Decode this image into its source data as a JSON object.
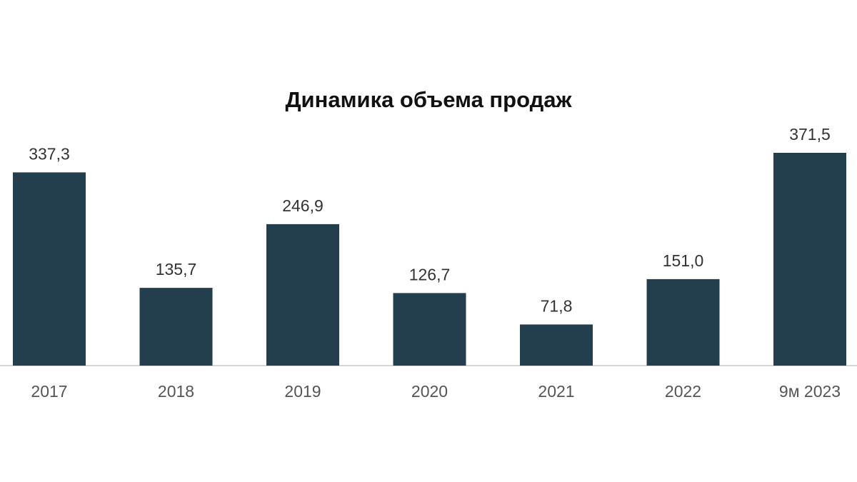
{
  "chart_data": {
    "type": "bar",
    "title": "Динамика объема продаж",
    "categories": [
      "2017",
      "2018",
      "2019",
      "2020",
      "2021",
      "2022",
      "9м 2023"
    ],
    "values": [
      337.3,
      135.7,
      246.9,
      126.7,
      71.8,
      151.0,
      371.5
    ],
    "value_labels": [
      "337,3",
      "135,7",
      "246,9",
      "126,7",
      "71,8",
      "151,0",
      "371,5"
    ],
    "xlabel": "",
    "ylabel": "",
    "ylim": [
      0,
      371.5
    ],
    "grid": false,
    "legend": "none",
    "bar_color": "#233f4d",
    "baseline_color": "#c8c8c8"
  }
}
